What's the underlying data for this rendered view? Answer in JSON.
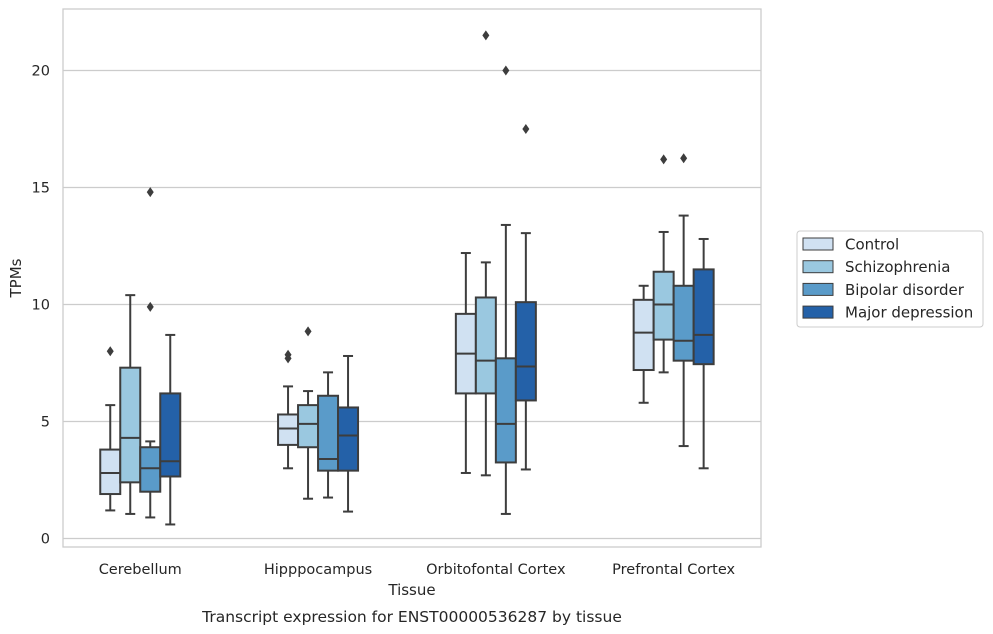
{
  "chart_data": {
    "type": "box",
    "title": "",
    "caption": "Transcript expression for ENST00000536287 by tissue",
    "xlabel": "Tissue",
    "ylabel": "TPMs",
    "ylim": [
      -0.4,
      22.7
    ],
    "yticks": [
      0,
      5,
      10,
      15,
      20
    ],
    "grid": "horizontal",
    "legend_position": "right",
    "categories": [
      "Cerebellum",
      "Hipppocampus",
      "Orbitofontal Cortex",
      "Prefrontal Cortex"
    ],
    "series": [
      {
        "name": "Control",
        "color": "#d0e1f2",
        "boxes": [
          {
            "whisker_low": 1.2,
            "q1": 1.9,
            "median": 2.8,
            "q3": 3.8,
            "whisker_high": 5.7,
            "outliers": [
              8.0
            ]
          },
          {
            "whisker_low": 3.0,
            "q1": 4.0,
            "median": 4.7,
            "q3": 5.3,
            "whisker_high": 6.5,
            "outliers": [
              7.7,
              7.85
            ]
          },
          {
            "whisker_low": 2.8,
            "q1": 6.2,
            "median": 7.9,
            "q3": 9.6,
            "whisker_high": 12.2,
            "outliers": []
          },
          {
            "whisker_low": 5.8,
            "q1": 7.2,
            "median": 8.8,
            "q3": 10.2,
            "whisker_high": 10.8,
            "outliers": []
          }
        ]
      },
      {
        "name": "Schizophrenia",
        "color": "#9ac8e0",
        "boxes": [
          {
            "whisker_low": 1.05,
            "q1": 2.4,
            "median": 4.3,
            "q3": 7.3,
            "whisker_high": 10.4,
            "outliers": []
          },
          {
            "whisker_low": 1.7,
            "q1": 3.9,
            "median": 4.9,
            "q3": 5.7,
            "whisker_high": 6.3,
            "outliers": [
              8.85
            ]
          },
          {
            "whisker_low": 2.7,
            "q1": 6.2,
            "median": 7.6,
            "q3": 10.3,
            "whisker_high": 11.8,
            "outliers": [
              21.5
            ]
          },
          {
            "whisker_low": 7.1,
            "q1": 8.5,
            "median": 10.0,
            "q3": 11.4,
            "whisker_high": 13.1,
            "outliers": [
              16.2
            ]
          }
        ]
      },
      {
        "name": "Bipolar disorder",
        "color": "#5a9bc9",
        "boxes": [
          {
            "whisker_low": 0.9,
            "q1": 2.0,
            "median": 3.0,
            "q3": 3.9,
            "whisker_high": 4.15,
            "outliers": [
              14.8,
              9.9
            ]
          },
          {
            "whisker_low": 1.75,
            "q1": 2.9,
            "median": 3.4,
            "q3": 6.1,
            "whisker_high": 7.1,
            "outliers": []
          },
          {
            "whisker_low": 1.05,
            "q1": 3.25,
            "median": 4.9,
            "q3": 7.7,
            "whisker_high": 13.4,
            "outliers": [
              20.0
            ]
          },
          {
            "whisker_low": 3.95,
            "q1": 7.6,
            "median": 8.45,
            "q3": 10.8,
            "whisker_high": 13.8,
            "outliers": [
              16.25
            ]
          }
        ]
      },
      {
        "name": "Major depression",
        "color": "#2461a8",
        "boxes": [
          {
            "whisker_low": 0.6,
            "q1": 2.65,
            "median": 3.3,
            "q3": 6.2,
            "whisker_high": 8.7,
            "outliers": []
          },
          {
            "whisker_low": 1.15,
            "q1": 2.9,
            "median": 4.4,
            "q3": 5.6,
            "whisker_high": 7.8,
            "outliers": []
          },
          {
            "whisker_low": 2.95,
            "q1": 5.9,
            "median": 7.35,
            "q3": 10.1,
            "whisker_high": 13.05,
            "outliers": [
              17.5
            ]
          },
          {
            "whisker_low": 3.0,
            "q1": 7.45,
            "median": 8.7,
            "q3": 11.5,
            "whisker_high": 12.8,
            "outliers": []
          }
        ]
      }
    ]
  }
}
